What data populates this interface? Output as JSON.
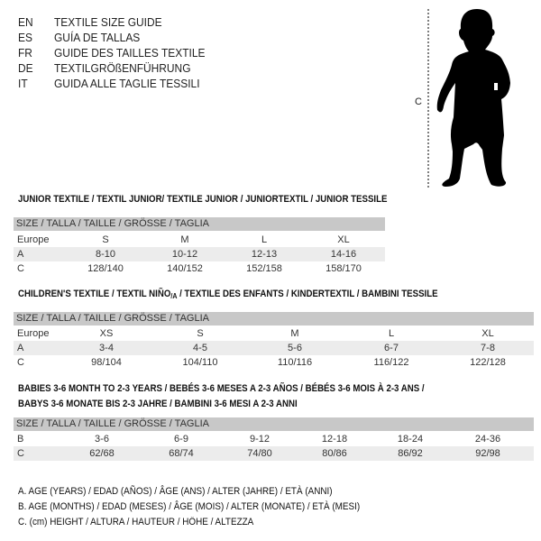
{
  "guide_titles": [
    {
      "code": "EN",
      "title": "TEXTILE SIZE GUIDE"
    },
    {
      "code": "ES",
      "title": "GUÍA DE TALLAS"
    },
    {
      "code": "FR",
      "title": "GUIDE DES TAILLES TEXTILE"
    },
    {
      "code": "DE",
      "title": "TEXTILGRÖßENFÜHRUNG"
    },
    {
      "code": "IT",
      "title": "GUIDA ALLE TAGLIE TESSILI"
    }
  ],
  "figure": {
    "measure_label": "C",
    "icon": "child-silhouette"
  },
  "size_header": "SIZE / TALLA / TAILLE / GRÖSSE / TAGLIA",
  "junior": {
    "title": "JUNIOR TEXTILE / TEXTIL JUNIOR/ TEXTILE JUNIOR / JUNIORTEXTIL / JUNIOR TESSILE",
    "rows": [
      {
        "label": "Europe",
        "values": [
          "S",
          "M",
          "L",
          "XL"
        ]
      },
      {
        "label": "A",
        "values": [
          "8-10",
          "10-12",
          "12-13",
          "14-16"
        ]
      },
      {
        "label": "C",
        "values": [
          "128/140",
          "140/152",
          "152/158",
          "158/170"
        ]
      }
    ]
  },
  "children": {
    "title_pre": "CHILDREN'S TEXTILE / TEXTIL NIÑO",
    "title_sub": "/A",
    "title_post": " / TEXTILE DES ENFANTS / KINDERTEXTIL / BAMBINI TESSILE",
    "rows": [
      {
        "label": "Europe",
        "values": [
          "XS",
          "S",
          "M",
          "L",
          "XL"
        ]
      },
      {
        "label": "A",
        "values": [
          "3-4",
          "4-5",
          "5-6",
          "6-7",
          "7-8"
        ]
      },
      {
        "label": "C",
        "values": [
          "98/104",
          "104/110",
          "110/116",
          "116/122",
          "122/128"
        ]
      }
    ]
  },
  "babies": {
    "title_line1": "BABIES 3-6 MONTH TO 2-3 YEARS / BEBÉS 3-6 MESES A 2-3 AÑOS / BÉBÉS 3-6 MOIS À 2-3 ANS /",
    "title_line2": "BABYS 3-6 MONATE BIS 2-3 JAHRE / BAMBINI 3-6 MESI A 2-3 ANNI",
    "rows": [
      {
        "label": "B",
        "values": [
          "3-6",
          "6-9",
          "9-12",
          "12-18",
          "18-24",
          "24-36"
        ]
      },
      {
        "label": "C",
        "values": [
          "62/68",
          "68/74",
          "74/80",
          "80/86",
          "86/92",
          "92/98"
        ]
      }
    ]
  },
  "legend": [
    "A. AGE (YEARS) / EDAD (AÑOS) / ÂGE (ANS) / ALTER (JAHRE) / ETÀ (ANNI)",
    "B. AGE (MONTHS) / EDAD (MESES) / ÂGE (MOIS) / ALTER (MONATE) / ETÀ (MESI)",
    "C. (cm) HEIGHT / ALTURA / HAUTEUR / HÖHE / ALTEZZA"
  ]
}
